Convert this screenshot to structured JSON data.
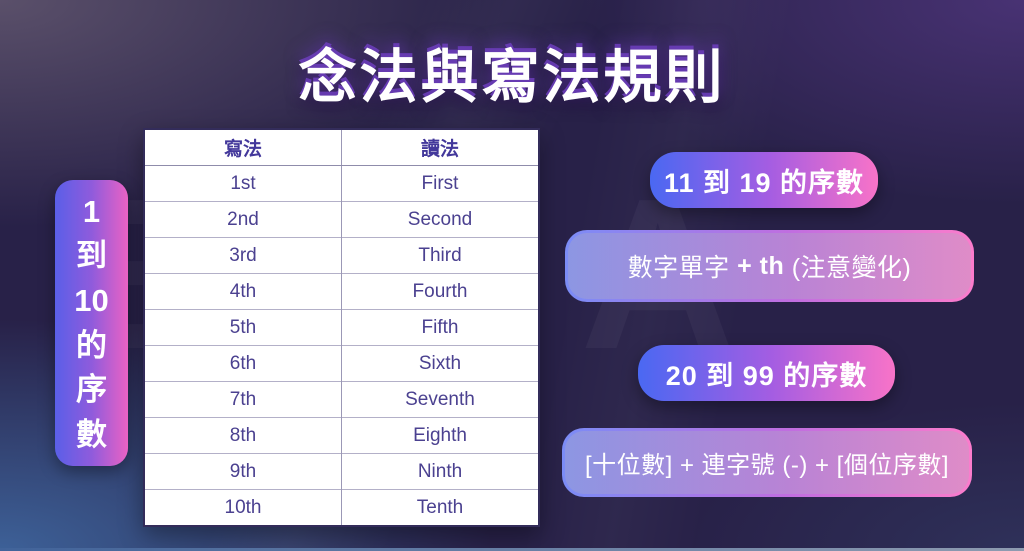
{
  "title": "念法與寫法規則",
  "watermark": "ELSA",
  "left_pill": {
    "label_chars": [
      "1",
      "到",
      "10",
      "的",
      "序",
      "數"
    ]
  },
  "table": {
    "headers": {
      "written": "寫法",
      "reading": "讀法"
    },
    "rows": [
      {
        "written": "1st",
        "reading": "First"
      },
      {
        "written": "2nd",
        "reading": "Second"
      },
      {
        "written": "3rd",
        "reading": "Third"
      },
      {
        "written": "4th",
        "reading": "Fourth"
      },
      {
        "written": "5th",
        "reading": "Fifth"
      },
      {
        "written": "6th",
        "reading": "Sixth"
      },
      {
        "written": "7th",
        "reading": "Seventh"
      },
      {
        "written": "8th",
        "reading": "Eighth"
      },
      {
        "written": "9th",
        "reading": "Ninth"
      },
      {
        "written": "10th",
        "reading": "Tenth"
      }
    ]
  },
  "right_panel": {
    "section1": {
      "heading": "11 到 19 的序數",
      "rule_pre": "數字單字 ",
      "rule_bold": "+ th",
      "rule_post": " (注意變化)"
    },
    "section2": {
      "heading": "20 到 99 的序數",
      "rule": "[十位數] + 連字號 (-) + [個位序數]"
    }
  },
  "colors": {
    "background_center": "#282148",
    "background_top_right": "#45306B",
    "background_bottom_left": "#3E6498",
    "pill_gradient_start": "#4A68F2",
    "pill_gradient_mid": "#A45DE2",
    "pill_gradient_end": "#F873C8",
    "table_header_text": "#43389B",
    "table_body_text": "#4B4190",
    "title_shadow": "#6D3EBD",
    "bottom_line_start": "#41639A",
    "bottom_line_end": "#8E9BB0"
  }
}
